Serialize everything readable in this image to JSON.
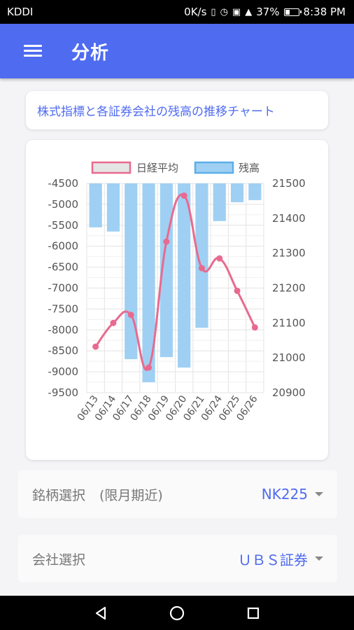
{
  "status": {
    "carrier": "KDDI",
    "speed": "0K/s",
    "battery": "37%",
    "battery_level": 0.37,
    "time": "8:38 PM"
  },
  "appbar": {
    "title": "分析",
    "menu_icon": "hamburger-menu-icon"
  },
  "card_title": "株式指標と各証券会社の残高の推移チャート",
  "chart_data": {
    "type": "bar+line",
    "categories": [
      "06/13",
      "06/14",
      "06/17",
      "06/18",
      "06/19",
      "06/20",
      "06/21",
      "06/24",
      "06/25",
      "06/26"
    ],
    "legend": [
      {
        "name": "日経平均",
        "color": "#e86a8f",
        "fill": "#e5e5e5"
      },
      {
        "name": "残高",
        "color": "#5aaee8",
        "fill": "#9fd0f3"
      }
    ],
    "bar_series": {
      "name": "残高",
      "axis": "left",
      "values": [
        -5550,
        -5650,
        -8700,
        -9250,
        -8650,
        -8900,
        -7950,
        -5400,
        -4950,
        -4900
      ]
    },
    "line_series": {
      "name": "日経平均",
      "axis": "right",
      "values": [
        21032,
        21100,
        21123,
        20972,
        21333,
        21465,
        21257,
        21285,
        21192,
        21087
      ]
    },
    "left_axis": {
      "min": -9500,
      "max": -4500,
      "step": 500,
      "ticks": [
        "-4500",
        "-5000",
        "-5500",
        "-6000",
        "-6500",
        "-7000",
        "-7500",
        "-8000",
        "-8500",
        "-9000",
        "-9500"
      ]
    },
    "right_axis": {
      "min": 20900,
      "max": 21500,
      "step": 100,
      "ticks": [
        "21500",
        "21400",
        "21300",
        "21200",
        "21100",
        "21000",
        "20900"
      ]
    },
    "grid": true,
    "legend_position": "top",
    "colors": {
      "bar_fill": "#9fd0f3",
      "line": "#e86a8f",
      "grid": "#e3e3e3",
      "tick_text": "#555555"
    }
  },
  "selectors": {
    "brand": {
      "label": "銘柄選択",
      "hint": "(限月期近)",
      "value": "NK225"
    },
    "company": {
      "label": "会社選択",
      "value": "ＵＢＳ証券"
    }
  },
  "navbar": {
    "back_icon": "back-triangle-icon",
    "home_icon": "home-circle-icon",
    "recents_icon": "recents-square-icon"
  },
  "theme": {
    "primary": "#4f6bf0",
    "background": "#f4f4f6"
  }
}
